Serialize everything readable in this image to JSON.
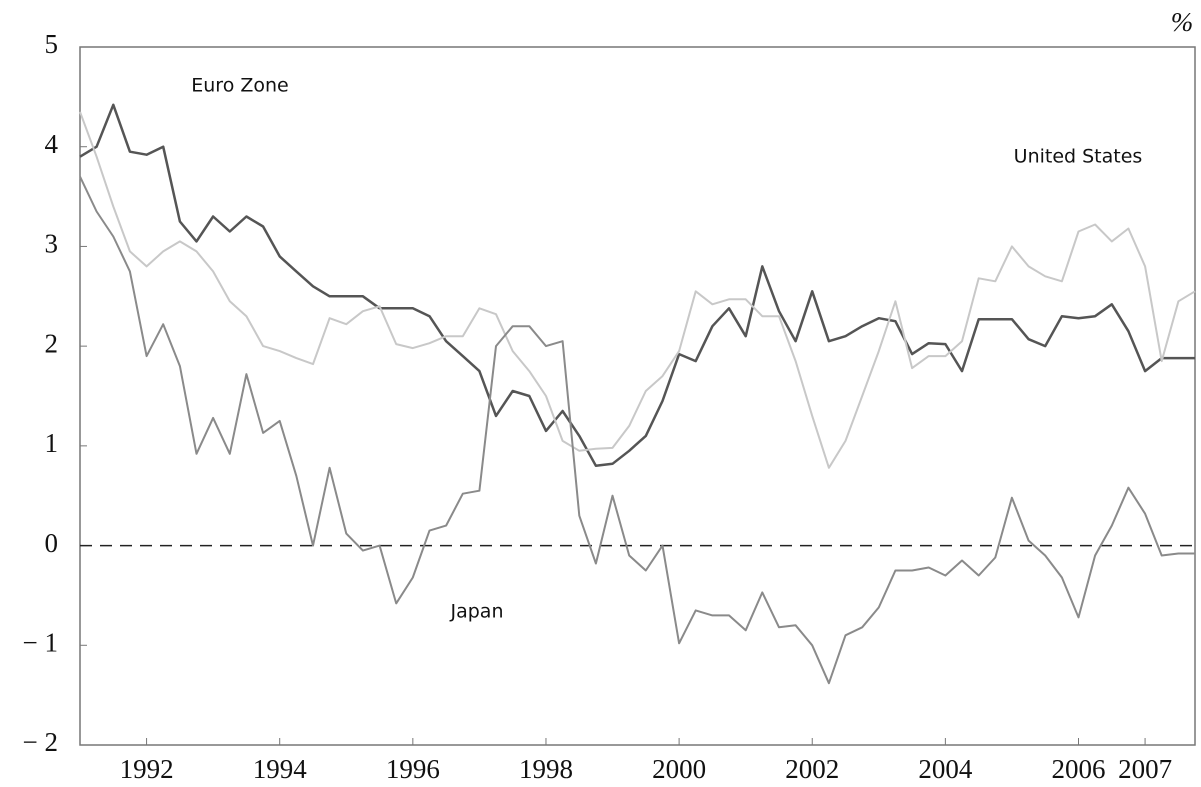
{
  "chart_data": {
    "type": "line",
    "unit_label": "%",
    "x": [
      1991,
      1991.25,
      1991.5,
      1991.75,
      1992,
      1992.25,
      1992.5,
      1992.75,
      1993,
      1993.25,
      1993.5,
      1993.75,
      1994,
      1994.25,
      1994.5,
      1994.75,
      1995,
      1995.25,
      1995.5,
      1995.75,
      1996,
      1996.25,
      1996.5,
      1996.75,
      1997,
      1997.25,
      1997.5,
      1997.75,
      1998,
      1998.25,
      1998.5,
      1998.75,
      1999,
      1999.25,
      1999.5,
      1999.75,
      2000,
      2000.25,
      2000.5,
      2000.75,
      2001,
      2001.25,
      2001.5,
      2001.75,
      2002,
      2002.25,
      2002.5,
      2002.75,
      2003,
      2003.25,
      2003.5,
      2003.75,
      2004,
      2004.25,
      2004.5,
      2004.75,
      2005,
      2005.25,
      2005.5,
      2005.75,
      2006,
      2006.25,
      2006.5,
      2006.75,
      2007,
      2007.25,
      2007.5,
      2007.75
    ],
    "series": [
      {
        "name": "Euro Zone",
        "color": "#555555",
        "values": [
          3.9,
          4.0,
          4.42,
          3.95,
          3.92,
          4.0,
          3.25,
          3.05,
          3.3,
          3.15,
          3.3,
          3.2,
          2.9,
          2.75,
          2.6,
          2.5,
          2.5,
          2.5,
          2.38,
          2.38,
          2.38,
          2.3,
          2.05,
          1.9,
          1.75,
          1.3,
          1.55,
          1.5,
          1.15,
          1.35,
          1.1,
          0.8,
          0.82,
          0.95,
          1.1,
          1.45,
          1.92,
          1.85,
          2.2,
          2.38,
          2.1,
          2.8,
          2.35,
          2.05,
          2.55,
          2.05,
          2.1,
          2.2,
          2.28,
          2.25,
          1.92,
          2.03,
          2.02,
          1.75,
          2.27,
          2.27,
          2.27,
          2.07,
          2.0,
          2.3,
          2.28,
          2.3,
          2.42,
          2.15,
          1.75,
          1.88,
          1.88,
          1.88
        ]
      },
      {
        "name": "United States",
        "color": "#c8c8c8",
        "values": [
          4.35,
          3.9,
          3.4,
          2.95,
          2.8,
          2.95,
          3.05,
          2.95,
          2.75,
          2.45,
          2.3,
          2.0,
          1.95,
          1.88,
          1.82,
          2.28,
          2.22,
          2.35,
          2.4,
          2.02,
          1.98,
          2.03,
          2.1,
          2.1,
          2.38,
          2.32,
          1.95,
          1.75,
          1.5,
          1.05,
          0.95,
          0.97,
          0.98,
          1.2,
          1.55,
          1.7,
          1.95,
          2.55,
          2.42,
          2.47,
          2.47,
          2.3,
          2.3,
          1.85,
          1.3,
          0.78,
          1.05,
          1.5,
          1.95,
          2.45,
          1.78,
          1.9,
          1.9,
          2.05,
          2.68,
          2.65,
          3.0,
          2.8,
          2.7,
          2.65,
          3.15,
          3.22,
          3.05,
          3.18,
          2.8,
          1.85,
          2.45,
          2.55
        ]
      },
      {
        "name": "Japan",
        "color": "#8a8a8a",
        "values": [
          3.7,
          3.35,
          3.1,
          2.75,
          1.9,
          2.22,
          1.8,
          0.92,
          1.28,
          0.92,
          1.72,
          1.13,
          1.25,
          0.7,
          0.0,
          0.78,
          0.12,
          -0.05,
          0.0,
          -0.58,
          -0.32,
          0.15,
          0.2,
          0.52,
          0.55,
          2.0,
          2.2,
          2.2,
          2.0,
          2.05,
          0.3,
          -0.18,
          0.5,
          -0.1,
          -0.25,
          0.0,
          -0.98,
          -0.65,
          -0.7,
          -0.7,
          -0.85,
          -0.47,
          -0.82,
          -0.8,
          -1.0,
          -1.38,
          -0.9,
          -0.82,
          -0.62,
          -0.25,
          -0.25,
          -0.22,
          -0.3,
          -0.15,
          -0.3,
          -0.12,
          0.48,
          0.05,
          -0.1,
          -0.32,
          -0.72,
          -0.1,
          0.2,
          0.58,
          0.32,
          -0.1,
          -0.08,
          -0.08
        ]
      }
    ],
    "xlim": [
      1991,
      2007.75
    ],
    "xticks": [
      1992,
      1994,
      1996,
      1998,
      2000,
      2002,
      2004,
      2006,
      2007
    ],
    "ylim": [
      -2,
      5
    ],
    "yticks": [
      {
        "value": -2,
        "label": "− 2"
      },
      {
        "value": -1,
        "label": "− 1"
      },
      0,
      1,
      2,
      3,
      4,
      5
    ],
    "reference_line": 0,
    "grid": false
  }
}
